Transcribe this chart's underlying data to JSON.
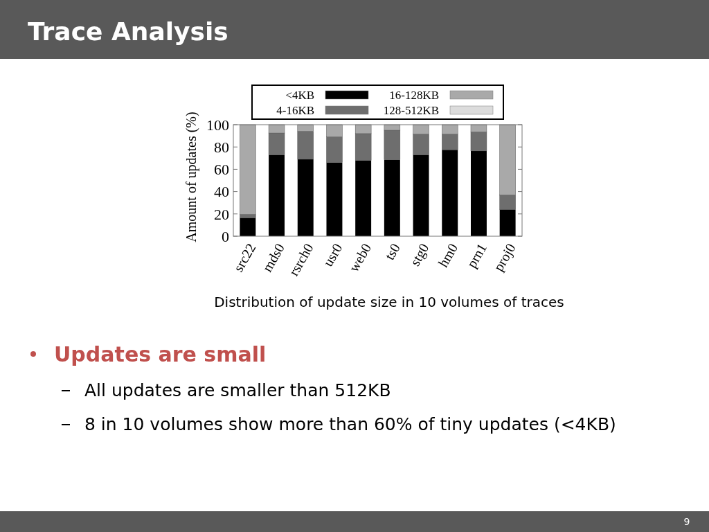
{
  "chart_data": {
    "type": "bar",
    "title": "Trace Analysis",
    "ylabel": "Amount of updates (%)",
    "stacked": true,
    "categories": [
      "src22",
      "mds0",
      "rsrch0",
      "usr0",
      "web0",
      "ts0",
      "stg0",
      "hm0",
      "prn1",
      "proj0"
    ],
    "series": [
      {
        "name": "<4KB",
        "color": "#000000",
        "values": [
          16.5,
          73,
          69,
          66,
          68,
          68.5,
          73,
          77.5,
          76.5,
          24
        ]
      },
      {
        "name": "4-16KB",
        "color": "#6e6e6e",
        "values": [
          3,
          19.5,
          25,
          23,
          24,
          26.5,
          18.5,
          14,
          17,
          13
        ]
      },
      {
        "name": "16-128KB",
        "color": "#a9a9a9",
        "values": [
          80.5,
          7.5,
          6,
          11,
          8,
          5,
          8.5,
          8.5,
          6.5,
          63
        ]
      },
      {
        "name": "128-512KB",
        "color": "#dcdcdc",
        "values": [
          0,
          0,
          0,
          0,
          0,
          0,
          0,
          0,
          0,
          0
        ]
      }
    ],
    "ylim": [
      0,
      100
    ],
    "yticks": [
      0,
      20,
      40,
      60,
      80,
      100
    ],
    "grid": false,
    "legend": "top",
    "annotations": [
      "Distribution of update size in 10 volumes of traces",
      "Updates are small",
      "All updates are smaller than 512KB",
      "8 in 10 volumes show more than 60% of tiny updates (<4KB)",
      "9"
    ]
  }
}
